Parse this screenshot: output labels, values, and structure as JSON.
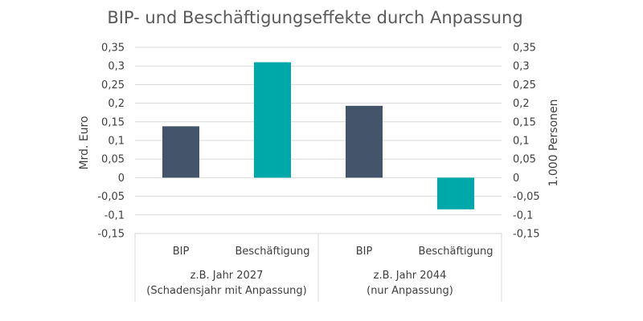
{
  "chart_data": {
    "type": "bar",
    "title": "BIP- und Beschäftigungseffekte durch Anpassung",
    "ylabel_left": "Mrd. Euro",
    "ylabel_right": "1.000 Personen",
    "ylim": [
      -0.15,
      0.35
    ],
    "y_ticks": [
      "-0,15",
      "-0,1",
      "-0,05",
      "0",
      "0,05",
      "0,1",
      "0,15",
      "0,2",
      "0,25",
      "0,3",
      "0,35"
    ],
    "y_tick_values": [
      -0.15,
      -0.1,
      -0.05,
      0,
      0.05,
      0.1,
      0.15,
      0.2,
      0.25,
      0.3,
      0.35
    ],
    "groups": [
      {
        "label_line1": "z.B. Jahr 2027",
        "label_line2": "(Schadensjahr mit Anpassung)",
        "bars": [
          {
            "category": "BIP",
            "value": 0.138,
            "axis": "left",
            "color": "#44546a"
          },
          {
            "category": "Beschäftigung",
            "value": 0.31,
            "axis": "right",
            "color": "#00a9a9"
          }
        ]
      },
      {
        "label_line1": "z.B. Jahr 2044",
        "label_line2": "(nur Anpassung)",
        "bars": [
          {
            "category": "BIP",
            "value": 0.193,
            "axis": "left",
            "color": "#44546a"
          },
          {
            "category": "Beschäftigung",
            "value": -0.085,
            "axis": "right",
            "color": "#00a9a9"
          }
        ]
      }
    ],
    "grid": true,
    "legend": "none"
  }
}
